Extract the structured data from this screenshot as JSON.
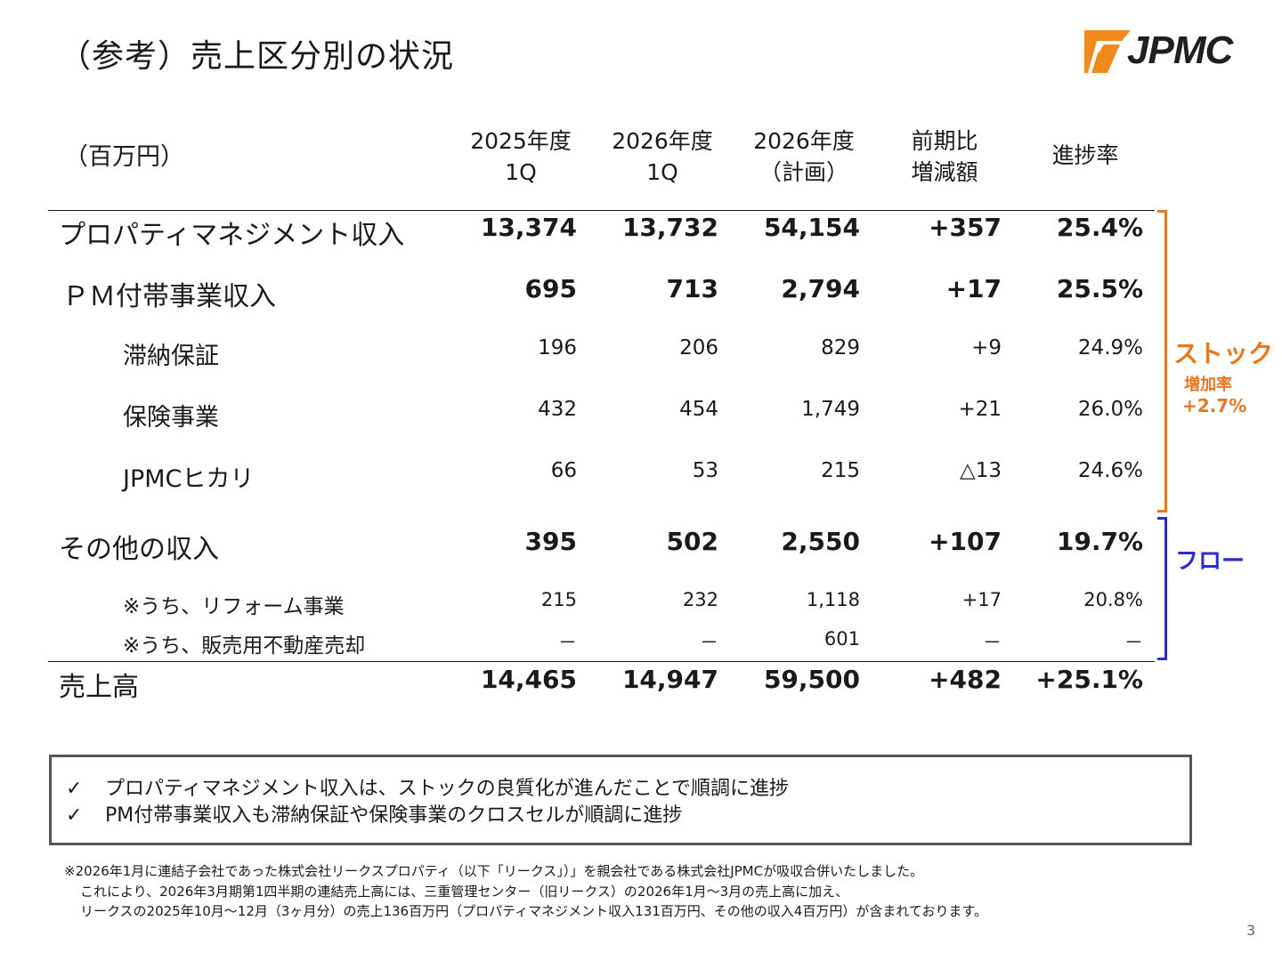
{
  "title": "（参考）売上区分別の状況",
  "logo": {
    "text": "JPMC"
  },
  "table": {
    "unit": "（百万円）",
    "headers": [
      {
        "line1": "2025年度",
        "line2": "1Q"
      },
      {
        "line1": "2026年度",
        "line2": "1Q"
      },
      {
        "line1": "2026年度",
        "line2": "（計画）"
      },
      {
        "line1": "前期比",
        "line2": "増減額"
      },
      {
        "line1": "進捗率",
        "line2": ""
      }
    ],
    "rows": [
      {
        "label": "プロパティマネジメント収入",
        "v": [
          "13,374",
          "13,732",
          "54,154",
          "+357",
          "25.4%"
        ]
      },
      {
        "label": "ＰＭ付帯事業収入",
        "v": [
          "695",
          "713",
          "2,794",
          "+17",
          "25.5%"
        ]
      },
      {
        "label": "滞納保証",
        "v": [
          "196",
          "206",
          "829",
          "+9",
          "24.9%"
        ]
      },
      {
        "label": "保険事業",
        "v": [
          "432",
          "454",
          "1,749",
          "+21",
          "26.0%"
        ]
      },
      {
        "label": "JPMCヒカリ",
        "v": [
          "66",
          "53",
          "215",
          "△13",
          "24.6%"
        ]
      },
      {
        "label": "その他の収入",
        "v": [
          "395",
          "502",
          "2,550",
          "+107",
          "19.7%"
        ]
      },
      {
        "label": "※うち、リフォーム事業",
        "v": [
          "215",
          "232",
          "1,118",
          "+17",
          "20.8%"
        ]
      },
      {
        "label": "※うち、販売用不動産売却",
        "v": [
          "－",
          "－",
          "601",
          "－",
          "－"
        ]
      },
      {
        "label": "売上高",
        "v": [
          "14,465",
          "14,947",
          "59,500",
          "+482",
          "+25.1%"
        ]
      }
    ]
  },
  "side": {
    "stock_label": "ストック",
    "stock_sub": "増加率",
    "stock_rate": "+2.7%",
    "flow_label": "フロー",
    "stock_color": "#e87722",
    "flow_color": "#2b2bd0"
  },
  "box": {
    "check": "✓",
    "lines": [
      "プロパティマネジメント収入は、ストックの良質化が進んだことで順調に進捗",
      "PM付帯事業収入も滞納保証や保険事業のクロスセルが順調に進捗"
    ]
  },
  "notes": [
    "※2026年1月に連結子会社であった株式会社リークスプロパティ（以下「リークス」）」を親会社である株式会社JPMCが吸収合併いたしました。",
    "これにより、2026年3月期第1四半期の連結売上高には、三重管理センター（旧リークス）の2026年1月～3月の売上高に加え、",
    "リークスの2025年10月～12月（3ヶ月分）の売上136百万円（プロパティマネジメント収入131百万円、その他の収入4百万円）が含まれております。"
  ],
  "page_number": "3"
}
